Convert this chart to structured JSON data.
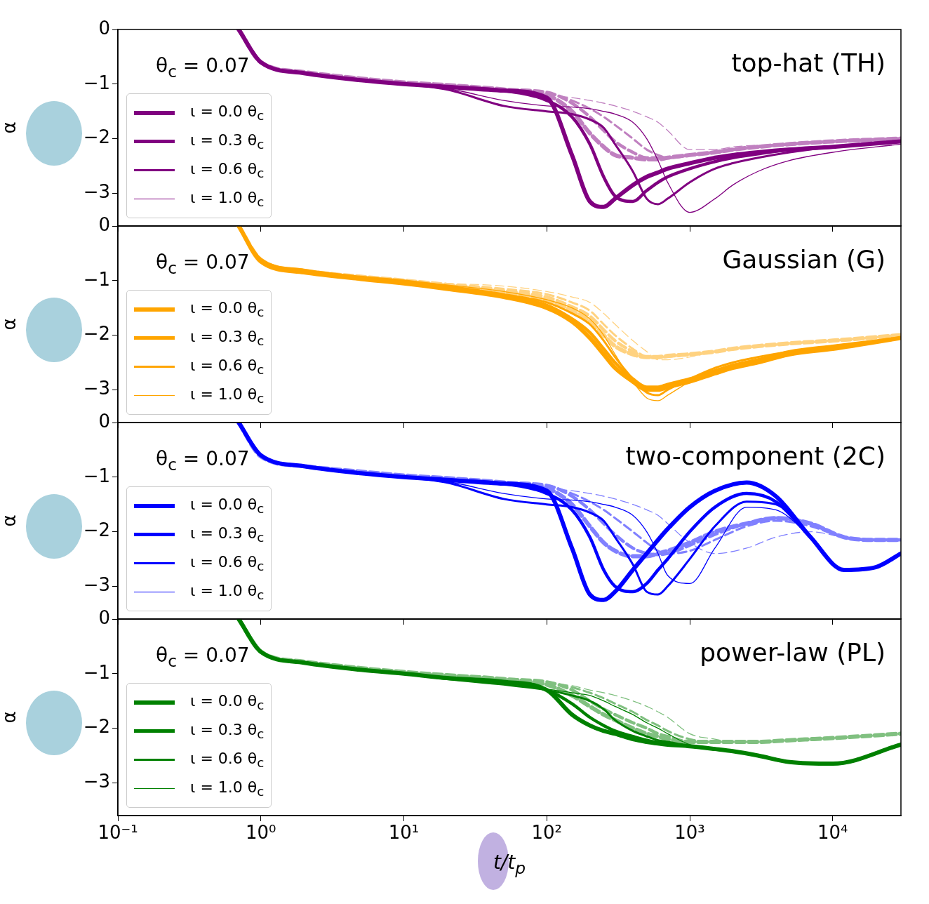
{
  "chart_data": [
    {
      "type": "line",
      "annotations": [
        "θ$_{c}$ = 0.07",
        "top-hat (TH)"
      ],
      "ylabel": "α",
      "log": "x",
      "xlim": [
        0.1,
        30000
      ],
      "xticks": [
        {
          "value": 0.1,
          "label": null
        },
        {
          "value": 1,
          "label": null
        },
        {
          "value": 10,
          "label": null
        },
        {
          "value": 100,
          "label": null
        },
        {
          "value": 1000,
          "label": null
        },
        {
          "value": 10000,
          "label": null
        }
      ],
      "ylim": [
        -3.6,
        0
      ],
      "yticks": [
        {
          "value": 0,
          "label": "0"
        },
        {
          "value": -1,
          "label": "−1"
        },
        {
          "value": -2,
          "label": "−2"
        },
        {
          "value": -3,
          "label": "−3"
        }
      ],
      "tick_labels": "y",
      "legend": "left",
      "line_style": "solid",
      "x": [
        0.7,
        1,
        2,
        5,
        10,
        20,
        50,
        100,
        150,
        200,
        250,
        300,
        400,
        500,
        600,
        700,
        1000,
        1500,
        2000,
        3000,
        5000,
        10000,
        30000
      ],
      "series": [
        {
          "name": "ι = 0.0 θ$_{c}$",
          "color": "#800080",
          "values": [
            0,
            -0.6,
            -0.8,
            -0.93,
            -1.0,
            -1.05,
            -1.12,
            -1.25,
            -2.3,
            -3.15,
            -3.25,
            -3.1,
            -2.85,
            -2.7,
            -2.62,
            -2.55,
            -2.45,
            -2.35,
            -2.3,
            -2.25,
            -2.2,
            -2.15,
            -2.05
          ]
        },
        {
          "name": "ι = 0.3 θ$_{c}$",
          "color": "#800080",
          "values": [
            0,
            -0.6,
            -0.8,
            -0.93,
            -1.0,
            -1.05,
            -1.12,
            -1.3,
            -1.6,
            -2.1,
            -2.7,
            -3.05,
            -3.15,
            -2.95,
            -2.8,
            -2.7,
            -2.55,
            -2.42,
            -2.35,
            -2.28,
            -2.2,
            -2.15,
            -2.05
          ]
        },
        {
          "name": "ι = 0.6 θ$_{c}$",
          "color": "#800080",
          "values": [
            0,
            -0.6,
            -0.8,
            -0.93,
            -1.0,
            -1.1,
            -1.4,
            -1.5,
            -1.55,
            -1.65,
            -1.8,
            -2.1,
            -2.6,
            -3.1,
            -3.2,
            -3.1,
            -2.8,
            -2.55,
            -2.45,
            -2.35,
            -2.25,
            -2.15,
            -2.05
          ]
        },
        {
          "name": "ι = 1.0 θ$_{c}$",
          "color": "#800080",
          "values": [
            0,
            -0.6,
            -0.8,
            -0.93,
            -1.0,
            -1.08,
            -1.3,
            -1.4,
            -1.42,
            -1.45,
            -1.5,
            -1.55,
            -1.7,
            -2.0,
            -2.4,
            -2.8,
            -3.35,
            -3.1,
            -2.85,
            -2.6,
            -2.4,
            -2.25,
            -2.1
          ]
        },
        {
          "color": "#c080c0",
          "line_style": "dashed",
          "values": [
            0,
            -0.6,
            -0.78,
            -0.9,
            -0.97,
            -1.02,
            -1.1,
            -1.2,
            -1.5,
            -1.9,
            -2.15,
            -2.3,
            -2.35,
            -2.38,
            -2.38,
            -2.35,
            -2.3,
            -2.25,
            -2.2,
            -2.15,
            -2.1,
            -2.05,
            -2.0
          ]
        },
        {
          "color": "#c080c0",
          "line_style": "dashed",
          "values": [
            0,
            -0.6,
            -0.78,
            -0.9,
            -0.97,
            -1.02,
            -1.1,
            -1.15,
            -1.35,
            -1.6,
            -1.85,
            -2.05,
            -2.25,
            -2.35,
            -2.35,
            -2.35,
            -2.3,
            -2.25,
            -2.2,
            -2.15,
            -2.1,
            -2.05,
            -2.0
          ]
        },
        {
          "color": "#c080c0",
          "line_style": "dashed",
          "values": [
            0,
            -0.6,
            -0.78,
            -0.9,
            -0.97,
            -1.02,
            -1.1,
            -1.15,
            -1.3,
            -1.45,
            -1.6,
            -1.75,
            -2.0,
            -2.2,
            -2.3,
            -2.35,
            -2.3,
            -2.25,
            -2.2,
            -2.15,
            -2.1,
            -2.05,
            -2.0
          ]
        },
        {
          "color": "#c080c0",
          "line_style": "dashed",
          "values": [
            0,
            -0.6,
            -0.78,
            -0.9,
            -0.97,
            -1.02,
            -1.1,
            -1.2,
            -1.25,
            -1.3,
            -1.35,
            -1.4,
            -1.5,
            -1.6,
            -1.7,
            -1.85,
            -2.2,
            -2.2,
            -2.15,
            -2.12,
            -2.1,
            -2.05,
            -2.0
          ]
        }
      ]
    },
    {
      "type": "line",
      "annotations": [
        "θ$_{c}$ = 0.07",
        "Gaussian (G)"
      ],
      "ylabel": "α",
      "log": "x",
      "xlim": [
        0.1,
        30000
      ],
      "xticks": [
        {
          "value": 0.1,
          "label": null
        },
        {
          "value": 1,
          "label": null
        },
        {
          "value": 10,
          "label": null
        },
        {
          "value": 100,
          "label": null
        },
        {
          "value": 1000,
          "label": null
        },
        {
          "value": 10000,
          "label": null
        }
      ],
      "ylim": [
        -3.6,
        0
      ],
      "yticks": [
        {
          "value": 0,
          "label": "0"
        },
        {
          "value": -1,
          "label": "−1"
        },
        {
          "value": -2,
          "label": "−2"
        },
        {
          "value": -3,
          "label": "−3"
        }
      ],
      "tick_labels": "y",
      "legend": "left",
      "line_style": "solid",
      "x": [
        0.7,
        1,
        2,
        5,
        10,
        20,
        50,
        100,
        150,
        200,
        250,
        300,
        400,
        500,
        600,
        700,
        1000,
        1500,
        2000,
        3000,
        5000,
        10000,
        30000
      ],
      "series": [
        {
          "name": "ι = 0.0 θ$_{c}$",
          "color": "#ffa500",
          "values": [
            0,
            -0.65,
            -0.85,
            -0.97,
            -1.05,
            -1.15,
            -1.3,
            -1.5,
            -1.75,
            -2.05,
            -2.35,
            -2.6,
            -2.85,
            -3.0,
            -3.0,
            -2.95,
            -2.85,
            -2.7,
            -2.6,
            -2.5,
            -2.35,
            -2.25,
            -2.05
          ]
        },
        {
          "name": "ι = 0.3 θ$_{c}$",
          "color": "#ffa500",
          "values": [
            0,
            -0.63,
            -0.83,
            -0.95,
            -1.03,
            -1.12,
            -1.27,
            -1.45,
            -1.7,
            -1.95,
            -2.25,
            -2.5,
            -2.8,
            -2.95,
            -2.95,
            -2.9,
            -2.8,
            -2.65,
            -2.55,
            -2.45,
            -2.3,
            -2.2,
            -2.05
          ]
        },
        {
          "name": "ι = 0.6 θ$_{c}$",
          "color": "#ffa500",
          "values": [
            0,
            -0.6,
            -0.8,
            -0.93,
            -1.0,
            -1.1,
            -1.25,
            -1.4,
            -1.6,
            -1.8,
            -2.1,
            -2.4,
            -2.8,
            -3.05,
            -3.1,
            -3.0,
            -2.8,
            -2.6,
            -2.5,
            -2.4,
            -2.3,
            -2.2,
            -2.05
          ]
        },
        {
          "name": "ι = 1.0 θ$_{c}$",
          "color": "#ffa500",
          "values": [
            0,
            -0.6,
            -0.8,
            -0.93,
            -1.0,
            -1.08,
            -1.2,
            -1.35,
            -1.5,
            -1.7,
            -2.0,
            -2.35,
            -2.85,
            -3.15,
            -3.2,
            -3.1,
            -2.85,
            -2.6,
            -2.5,
            -2.4,
            -2.3,
            -2.2,
            -2.05
          ]
        },
        {
          "color": "#ffd280",
          "line_style": "dashed",
          "values": [
            0,
            -0.62,
            -0.82,
            -0.93,
            -1.0,
            -1.08,
            -1.2,
            -1.35,
            -1.55,
            -1.75,
            -2.0,
            -2.2,
            -2.35,
            -2.4,
            -2.4,
            -2.38,
            -2.35,
            -2.3,
            -2.25,
            -2.2,
            -2.15,
            -2.1,
            -2.0
          ]
        },
        {
          "color": "#ffd280",
          "line_style": "dashed",
          "values": [
            0,
            -0.62,
            -0.82,
            -0.93,
            -1.0,
            -1.08,
            -1.18,
            -1.3,
            -1.48,
            -1.65,
            -1.9,
            -2.1,
            -2.3,
            -2.4,
            -2.4,
            -2.38,
            -2.35,
            -2.3,
            -2.25,
            -2.2,
            -2.15,
            -2.1,
            -2.0
          ]
        },
        {
          "color": "#ffd280",
          "line_style": "dashed",
          "values": [
            0,
            -0.62,
            -0.82,
            -0.93,
            -1.0,
            -1.06,
            -1.15,
            -1.25,
            -1.4,
            -1.55,
            -1.8,
            -2.0,
            -2.25,
            -2.4,
            -2.42,
            -2.4,
            -2.35,
            -2.3,
            -2.25,
            -2.2,
            -2.15,
            -2.1,
            -2.0
          ]
        },
        {
          "color": "#ffd280",
          "line_style": "dashed",
          "values": [
            0,
            -0.62,
            -0.82,
            -0.93,
            -1.0,
            -1.05,
            -1.1,
            -1.2,
            -1.3,
            -1.4,
            -1.6,
            -1.8,
            -2.1,
            -2.3,
            -2.45,
            -2.45,
            -2.4,
            -2.3,
            -2.25,
            -2.2,
            -2.15,
            -2.1,
            -2.0
          ]
        }
      ]
    },
    {
      "type": "line",
      "annotations": [
        "θ$_{c}$ = 0.07",
        "two-component (2C)"
      ],
      "ylabel": "α",
      "log": "x",
      "xlim": [
        0.1,
        30000
      ],
      "xticks": [
        {
          "value": 0.1,
          "label": null
        },
        {
          "value": 1,
          "label": null
        },
        {
          "value": 10,
          "label": null
        },
        {
          "value": 100,
          "label": null
        },
        {
          "value": 1000,
          "label": null
        },
        {
          "value": 10000,
          "label": null
        }
      ],
      "ylim": [
        -3.6,
        0
      ],
      "yticks": [
        {
          "value": 0,
          "label": "0"
        },
        {
          "value": -1,
          "label": "−1"
        },
        {
          "value": -2,
          "label": "−2"
        },
        {
          "value": -3,
          "label": "−3"
        }
      ],
      "tick_labels": "y",
      "legend": "left",
      "line_style": "solid",
      "x": [
        0.7,
        1,
        2,
        5,
        10,
        20,
        50,
        100,
        150,
        200,
        250,
        300,
        400,
        500,
        600,
        700,
        1000,
        1500,
        2500,
        4000,
        7000,
        12000,
        20000,
        30000
      ],
      "series": [
        {
          "name": "ι = 0.0 θ$_{c}$",
          "color": "#0000ff",
          "values": [
            0,
            -0.6,
            -0.8,
            -0.93,
            -1.0,
            -1.05,
            -1.12,
            -1.25,
            -2.3,
            -3.15,
            -3.25,
            -3.1,
            -2.7,
            -2.4,
            -2.15,
            -1.95,
            -1.55,
            -1.25,
            -1.1,
            -1.35,
            -2.1,
            -2.7,
            -2.65,
            -2.4
          ]
        },
        {
          "name": "ι = 0.3 θ$_{c}$",
          "color": "#0000ff",
          "values": [
            0,
            -0.6,
            -0.8,
            -0.93,
            -1.0,
            -1.05,
            -1.12,
            -1.3,
            -1.6,
            -2.1,
            -2.7,
            -3.0,
            -3.1,
            -2.95,
            -2.7,
            -2.5,
            -2.0,
            -1.55,
            -1.3,
            -1.45,
            -2.1,
            -2.7,
            -2.65,
            -2.4
          ]
        },
        {
          "name": "ι = 0.6 θ$_{c}$",
          "color": "#0000ff",
          "values": [
            0,
            -0.6,
            -0.8,
            -0.93,
            -1.0,
            -1.1,
            -1.4,
            -1.5,
            -1.55,
            -1.65,
            -1.8,
            -2.1,
            -2.6,
            -3.1,
            -3.15,
            -3.0,
            -2.5,
            -1.9,
            -1.45,
            -1.5,
            -2.1,
            -2.7,
            -2.65,
            -2.4
          ]
        },
        {
          "name": "ι = 1.0 θ$_{c}$",
          "color": "#0000ff",
          "values": [
            0,
            -0.6,
            -0.8,
            -0.93,
            -1.0,
            -1.08,
            -1.3,
            -1.4,
            -1.42,
            -1.45,
            -1.5,
            -1.55,
            -1.7,
            -2.0,
            -2.4,
            -2.8,
            -2.95,
            -2.3,
            -1.55,
            -1.6,
            -2.1,
            -2.7,
            -2.65,
            -2.4
          ]
        },
        {
          "color": "#8080ff",
          "line_style": "dashed",
          "values": [
            0,
            -0.62,
            -0.8,
            -0.9,
            -0.97,
            -1.02,
            -1.1,
            -1.2,
            -1.5,
            -1.9,
            -2.2,
            -2.35,
            -2.45,
            -2.45,
            -2.4,
            -2.35,
            -2.2,
            -2.0,
            -1.85,
            -1.75,
            -1.85,
            -2.1,
            -2.15,
            -2.15
          ]
        },
        {
          "color": "#8080ff",
          "line_style": "dashed",
          "values": [
            0,
            -0.62,
            -0.8,
            -0.9,
            -0.97,
            -1.02,
            -1.1,
            -1.15,
            -1.35,
            -1.6,
            -1.85,
            -2.05,
            -2.3,
            -2.4,
            -2.42,
            -2.4,
            -2.25,
            -2.05,
            -1.85,
            -1.75,
            -1.85,
            -2.1,
            -2.15,
            -2.15
          ]
        },
        {
          "color": "#8080ff",
          "line_style": "dashed",
          "values": [
            0,
            -0.62,
            -0.8,
            -0.9,
            -0.97,
            -1.02,
            -1.1,
            -1.15,
            -1.3,
            -1.45,
            -1.6,
            -1.75,
            -2.0,
            -2.2,
            -2.35,
            -2.4,
            -2.35,
            -2.15,
            -1.9,
            -1.8,
            -1.9,
            -2.1,
            -2.15,
            -2.15
          ]
        },
        {
          "color": "#8080ff",
          "line_style": "dashed",
          "values": [
            0,
            -0.62,
            -0.8,
            -0.9,
            -0.97,
            -1.02,
            -1.1,
            -1.2,
            -1.25,
            -1.3,
            -1.35,
            -1.4,
            -1.5,
            -1.6,
            -1.7,
            -1.85,
            -2.2,
            -2.4,
            -2.3,
            -2.1,
            -2.0,
            -2.1,
            -2.15,
            -2.15
          ]
        }
      ]
    },
    {
      "type": "line",
      "annotations": [
        "θ$_{c}$ = 0.07",
        "power-law (PL)"
      ],
      "xlabel": "t/t$_{p}$",
      "ylabel": "α",
      "log": "x",
      "xlim": [
        0.1,
        30000
      ],
      "xticks": [
        {
          "value": 0.1,
          "label": "10⁻¹"
        },
        {
          "value": 1,
          "label": "10⁰"
        },
        {
          "value": 10,
          "label": "10¹"
        },
        {
          "value": 100,
          "label": "10²"
        },
        {
          "value": 1000,
          "label": "10³"
        },
        {
          "value": 10000,
          "label": "10⁴"
        }
      ],
      "ylim": [
        -3.6,
        0
      ],
      "yticks": [
        {
          "value": 0,
          "label": "0"
        },
        {
          "value": -1,
          "label": "−1"
        },
        {
          "value": -2,
          "label": "−2"
        },
        {
          "value": -3,
          "label": "−3"
        }
      ],
      "legend": "left",
      "line_style": "solid",
      "x": [
        0.7,
        1,
        2,
        5,
        10,
        20,
        50,
        100,
        150,
        200,
        250,
        300,
        400,
        500,
        600,
        700,
        1000,
        1500,
        2000,
        3000,
        5000,
        10000,
        30000
      ],
      "series": [
        {
          "name": "ι = 0.0 θ$_{c}$",
          "color": "#008000",
          "values": [
            0,
            -0.6,
            -0.8,
            -0.93,
            -1.0,
            -1.08,
            -1.15,
            -1.3,
            -1.75,
            -1.95,
            -2.05,
            -2.1,
            -2.2,
            -2.25,
            -2.28,
            -2.3,
            -2.33,
            -2.38,
            -2.42,
            -2.5,
            -2.62,
            -2.65,
            -2.3
          ]
        },
        {
          "name": "ι = 0.3 θ$_{c}$",
          "color": "#008000",
          "values": [
            0,
            -0.6,
            -0.8,
            -0.93,
            -1.0,
            -1.08,
            -1.15,
            -1.3,
            -1.55,
            -1.8,
            -1.95,
            -2.05,
            -2.15,
            -2.22,
            -2.26,
            -2.28,
            -2.33,
            -2.38,
            -2.42,
            -2.5,
            -2.62,
            -2.65,
            -2.3
          ]
        },
        {
          "name": "ι = 0.6 θ$_{c}$",
          "color": "#008000",
          "values": [
            0,
            -0.6,
            -0.8,
            -0.93,
            -1.0,
            -1.1,
            -1.2,
            -1.3,
            -1.4,
            -1.5,
            -1.65,
            -1.85,
            -2.05,
            -2.15,
            -2.22,
            -2.25,
            -2.32,
            -2.38,
            -2.42,
            -2.5,
            -2.62,
            -2.65,
            -2.3
          ]
        },
        {
          "name": "ι = 1.0 θ$_{c}$",
          "color": "#008000",
          "values": [
            0,
            -0.6,
            -0.8,
            -0.93,
            -1.0,
            -1.08,
            -1.18,
            -1.28,
            -1.35,
            -1.4,
            -1.5,
            -1.6,
            -1.75,
            -1.9,
            -2.0,
            -2.1,
            -2.3,
            -2.38,
            -2.42,
            -2.5,
            -2.62,
            -2.65,
            -2.3
          ]
        },
        {
          "color": "#80c080",
          "line_style": "dashed",
          "values": [
            0,
            -0.6,
            -0.78,
            -0.9,
            -0.97,
            -1.03,
            -1.1,
            -1.2,
            -1.4,
            -1.6,
            -1.75,
            -1.85,
            -2.0,
            -2.1,
            -2.15,
            -2.2,
            -2.25,
            -2.25,
            -2.25,
            -2.25,
            -2.22,
            -2.18,
            -2.1
          ]
        },
        {
          "color": "#80c080",
          "line_style": "dashed",
          "values": [
            0,
            -0.6,
            -0.78,
            -0.9,
            -0.97,
            -1.03,
            -1.1,
            -1.15,
            -1.3,
            -1.5,
            -1.65,
            -1.75,
            -1.9,
            -2.0,
            -2.1,
            -2.15,
            -2.25,
            -2.25,
            -2.25,
            -2.25,
            -2.22,
            -2.18,
            -2.1
          ]
        },
        {
          "color": "#80c080",
          "line_style": "dashed",
          "values": [
            0,
            -0.6,
            -0.78,
            -0.9,
            -0.97,
            -1.03,
            -1.1,
            -1.15,
            -1.25,
            -1.35,
            -1.45,
            -1.55,
            -1.7,
            -1.85,
            -1.95,
            -2.05,
            -2.2,
            -2.25,
            -2.25,
            -2.25,
            -2.22,
            -2.18,
            -2.1
          ]
        },
        {
          "color": "#80c080",
          "line_style": "dashed",
          "values": [
            0,
            -0.6,
            -0.78,
            -0.9,
            -0.97,
            -1.03,
            -1.1,
            -1.18,
            -1.22,
            -1.3,
            -1.35,
            -1.4,
            -1.5,
            -1.6,
            -1.7,
            -1.8,
            -2.1,
            -2.2,
            -2.25,
            -2.25,
            -2.22,
            -2.18,
            -2.1
          ]
        }
      ]
    }
  ]
}
